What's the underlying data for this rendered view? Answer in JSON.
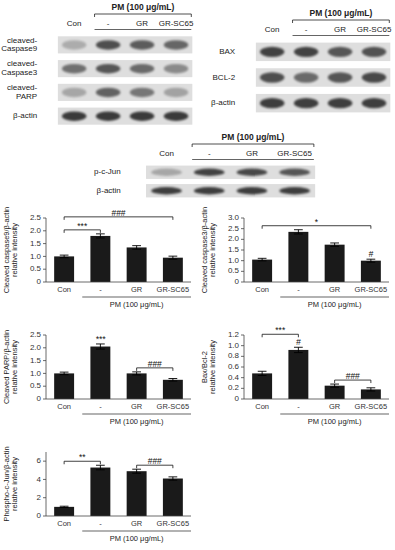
{
  "chart_data": [
    {
      "type": "blot",
      "title": "PM (100 μg/mL)",
      "categories": [
        "Con",
        "-",
        "GR",
        "GR-SC65"
      ],
      "row_labels": [
        "cleaved-\nCaspase9",
        "cleaved-\nCaspase3",
        "cleaved-\nPARP",
        "β-actin"
      ],
      "cells": [
        [
          0.25,
          0.72,
          0.65,
          0.6
        ],
        [
          0.55,
          0.68,
          0.58,
          0.42
        ],
        [
          0.28,
          0.62,
          0.52,
          0.3
        ],
        [
          0.82,
          0.82,
          0.82,
          0.82
        ]
      ]
    },
    {
      "type": "blot",
      "title": "PM (100 μg/mL)",
      "categories": [
        "Con",
        "-",
        "GR",
        "GR-SC65"
      ],
      "row_labels": [
        "BAX",
        "BCL-2",
        "β-actin"
      ],
      "cells": [
        [
          0.78,
          0.78,
          0.68,
          0.7
        ],
        [
          0.72,
          0.58,
          0.68,
          0.75
        ],
        [
          0.8,
          0.8,
          0.8,
          0.8
        ]
      ]
    },
    {
      "type": "blot",
      "title": "PM (100 μg/mL)",
      "categories": [
        "Con",
        "-",
        "GR",
        "GR-SC65"
      ],
      "row_labels": [
        "p-c-Jun",
        "β-actin"
      ],
      "cells": [
        [
          0.28,
          0.78,
          0.75,
          0.68
        ],
        [
          0.8,
          0.8,
          0.8,
          0.8
        ]
      ]
    },
    {
      "type": "bar",
      "categories": [
        "Con",
        "-",
        "GR",
        "GR-SC65"
      ],
      "values": [
        1.0,
        1.8,
        1.35,
        0.95
      ],
      "errors": [
        0.05,
        0.08,
        0.07,
        0.06
      ],
      "ylabel": "Cleaved caspase9/β-actin\nrelative intensity",
      "xlabel": "PM (100 μg/mL)",
      "ylim": [
        0,
        2.5
      ],
      "yticks": [
        0,
        0.5,
        {
          "value": 1,
          "label": "1.0"
        },
        1.5,
        {
          "value": 2,
          "label": "2.0"
        },
        2.5
      ],
      "color": "#1a1a1a",
      "annotations": [
        {
          "from": 0,
          "to": 1,
          "text": "***"
        },
        {
          "from": 0,
          "to": 3,
          "text": "###"
        }
      ]
    },
    {
      "type": "bar",
      "categories": [
        "Con",
        "-",
        "GR",
        "GR-SC65"
      ],
      "values": [
        1.05,
        2.35,
        1.75,
        1.0
      ],
      "errors": [
        0.06,
        0.1,
        0.08,
        0.07
      ],
      "ylabel": "Cleaved caspase3/β-actin\nrelative intensity",
      "xlabel": "PM (100 μg/mL)",
      "ylim": [
        0,
        3.0
      ],
      "yticks": [
        0,
        0.5,
        {
          "value": 1,
          "label": "1.0"
        },
        1.5,
        {
          "value": 2,
          "label": "2.0"
        },
        2.5,
        {
          "value": 3,
          "label": "3.0"
        }
      ],
      "color": "#1a1a1a",
      "annotations": [
        {
          "from": 0,
          "to": 3,
          "text": "*"
        },
        {
          "from": 3,
          "to": 3,
          "text": "#"
        }
      ]
    },
    {
      "type": "bar",
      "categories": [
        "Con",
        "-",
        "GR",
        "GR-SC65"
      ],
      "values": [
        1.0,
        2.05,
        1.0,
        0.75
      ],
      "errors": [
        0.05,
        0.1,
        0.06,
        0.05
      ],
      "ylabel": "Cleaved PARP/β-actin\nrelative intensity",
      "xlabel": "PM (100 μg/mL)",
      "ylim": [
        0,
        2.5
      ],
      "yticks": [
        0,
        0.5,
        {
          "value": 1,
          "label": "1.0"
        },
        1.5,
        {
          "value": 2,
          "label": "2.0"
        },
        2.5
      ],
      "color": "#1a1a1a",
      "annotations": [
        {
          "from": 1,
          "to": 1,
          "text": "***"
        },
        {
          "from": 2,
          "to": 3,
          "text": "###"
        }
      ]
    },
    {
      "type": "bar",
      "categories": [
        "Con",
        "-",
        "GR",
        "GR-SC65"
      ],
      "values": [
        0.48,
        0.92,
        0.25,
        0.18
      ],
      "errors": [
        0.04,
        0.05,
        0.03,
        0.03
      ],
      "ylabel": "Bax/Bcl-2\nrelative intensity",
      "xlabel": "PM (100 μg/mL)",
      "ylim": [
        0,
        1.2
      ],
      "yticks": [
        0,
        0.2,
        0.4,
        0.6,
        0.8,
        {
          "value": 1,
          "label": "1.0"
        },
        1.2
      ],
      "color": "#1a1a1a",
      "annotations": [
        {
          "from": 0,
          "to": 1,
          "text": "***"
        },
        {
          "from": 1,
          "to": 1,
          "text": "#"
        },
        {
          "from": 2,
          "to": 3,
          "text": "###"
        }
      ]
    },
    {
      "type": "bar",
      "categories": [
        "Con",
        "-",
        "GR",
        "GR-SC65"
      ],
      "values": [
        1.0,
        5.3,
        4.9,
        4.1
      ],
      "errors": [
        0.07,
        0.25,
        0.22,
        0.18
      ],
      "ylabel": "Phospho-c-Jun/β-actin\nrelative intensity",
      "xlabel": "PM (100 μg/mL)",
      "ylim": [
        0,
        7.0
      ],
      "yticks": [
        0,
        2,
        4,
        6
      ],
      "color": "#1a1a1a",
      "annotations": [
        {
          "from": 0,
          "to": 1,
          "text": "**"
        },
        {
          "from": 2,
          "to": 3,
          "text": "###"
        }
      ]
    }
  ]
}
